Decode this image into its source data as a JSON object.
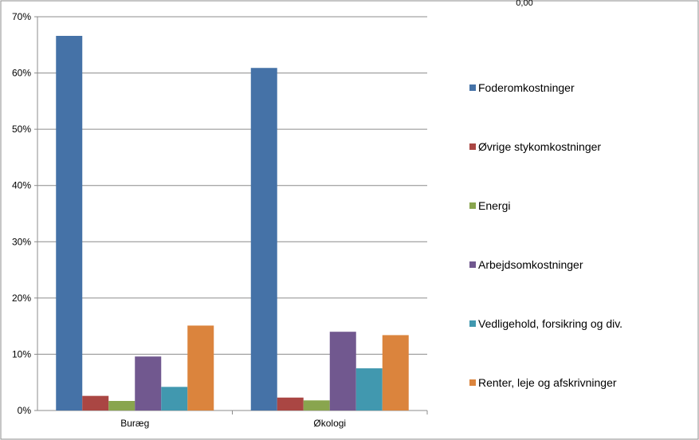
{
  "corner_note": "0,00",
  "chart_data": {
    "type": "bar",
    "categories": [
      "Buræg",
      "Økologi"
    ],
    "series": [
      {
        "name": "Foderomkostninger",
        "values": [
          0.666,
          0.609
        ],
        "color": "#4572a7"
      },
      {
        "name": "Øvrige stykomkostninger",
        "values": [
          0.026,
          0.023
        ],
        "color": "#aa4643"
      },
      {
        "name": "Energi",
        "values": [
          0.017,
          0.018
        ],
        "color": "#89a54e"
      },
      {
        "name": "Arbejdsomkostninger",
        "values": [
          0.096,
          0.14
        ],
        "color": "#71588f"
      },
      {
        "name": "Vedligehold, forsikring og div.",
        "values": [
          0.042,
          0.075
        ],
        "color": "#4198af"
      },
      {
        "name": "Renter, leje og afskrivninger",
        "values": [
          0.151,
          0.134
        ],
        "color": "#db843d"
      }
    ],
    "ylim": [
      0,
      0.7
    ],
    "yticks": [
      "0%",
      "10%",
      "20%",
      "30%",
      "40%",
      "50%",
      "60%",
      "70%"
    ],
    "grid": true,
    "legend_position": "right"
  }
}
